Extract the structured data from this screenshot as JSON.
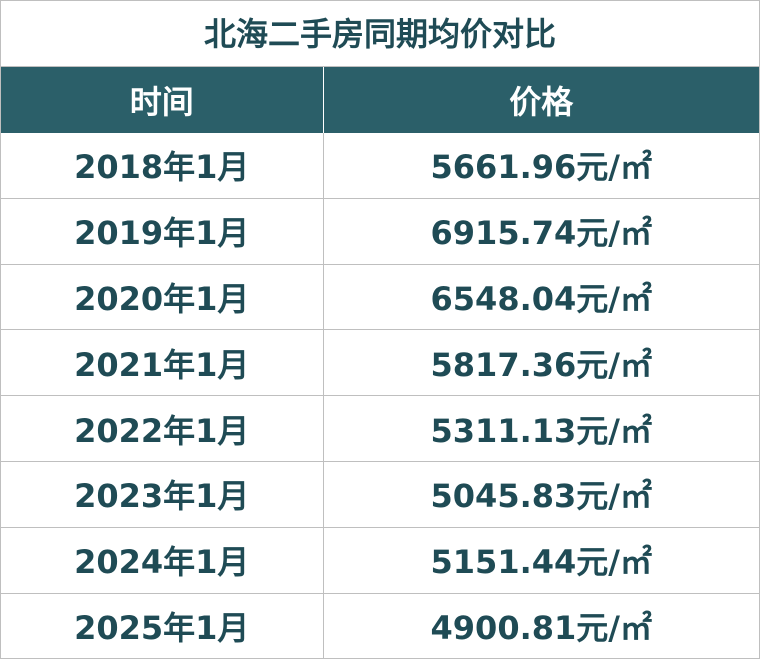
{
  "title": "北海二手房同期均价对比",
  "table": {
    "header": [
      "时间",
      "价格"
    ],
    "rows": [
      [
        "2018年1月",
        "5661.96元/㎡"
      ],
      [
        "2019年1月",
        "6915.74元/㎡"
      ],
      [
        "2020年1月",
        "6548.04元/㎡"
      ],
      [
        "2021年1月",
        "5817.36元/㎡"
      ],
      [
        "2022年1月",
        "5311.13元/㎡"
      ],
      [
        "2023年1月",
        "5045.83元/㎡"
      ],
      [
        "2024年1月",
        "5151.44元/㎡"
      ],
      [
        "2025年1月",
        "4900.81元/㎡"
      ]
    ]
  }
}
